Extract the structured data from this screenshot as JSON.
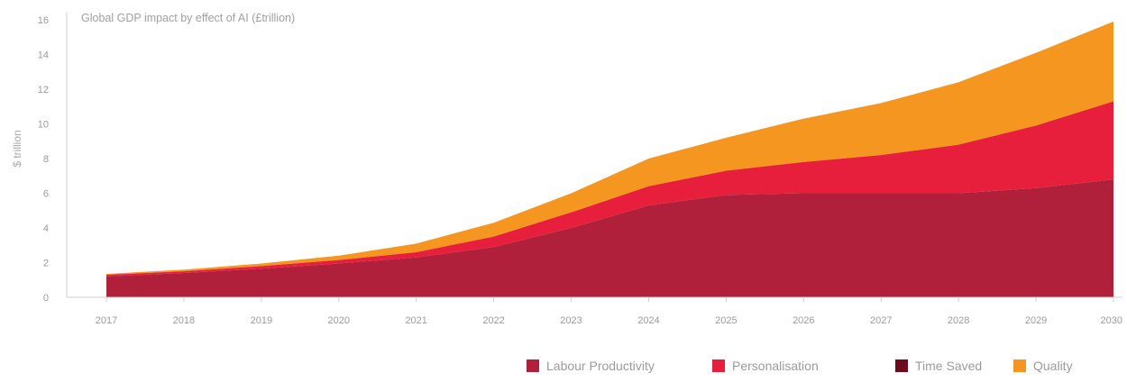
{
  "chart_data": {
    "type": "area",
    "stacked": true,
    "title": "Global GDP impact by effect of AI (£trillion)",
    "ylabel": "$ trillion",
    "xlabel": "",
    "ylim": [
      0,
      16
    ],
    "yticks": [
      0,
      2,
      4,
      6,
      8,
      10,
      12,
      14,
      16
    ],
    "categories": [
      "2017",
      "2018",
      "2019",
      "2020",
      "2021",
      "2022",
      "2023",
      "2024",
      "2025",
      "2026",
      "2027",
      "2028",
      "2029",
      "2030"
    ],
    "series": [
      {
        "name": "Labour Productivity",
        "color": "#b0203a",
        "values": [
          1.2,
          1.4,
          1.65,
          1.95,
          2.3,
          2.9,
          4.0,
          5.3,
          5.9,
          6.0,
          6.0,
          6.0,
          6.3,
          6.8
        ]
      },
      {
        "name": "Personalisation",
        "color": "#e71e3c",
        "values": [
          0.1,
          0.1,
          0.15,
          0.2,
          0.3,
          0.6,
          0.9,
          1.1,
          1.4,
          1.8,
          2.2,
          2.8,
          3.6,
          4.5
        ]
      },
      {
        "name": "Time Saved",
        "color": "#6e0a1e",
        "values": [
          0,
          0,
          0,
          0,
          0,
          0,
          0,
          0,
          0,
          0,
          0,
          0,
          0,
          0
        ]
      },
      {
        "name": "Quality",
        "color": "#f4961f",
        "values": [
          0.05,
          0.1,
          0.15,
          0.25,
          0.5,
          0.8,
          1.1,
          1.6,
          1.9,
          2.5,
          3.0,
          3.6,
          4.2,
          4.6
        ]
      }
    ],
    "legend_position": "bottom-right",
    "grid": false
  }
}
